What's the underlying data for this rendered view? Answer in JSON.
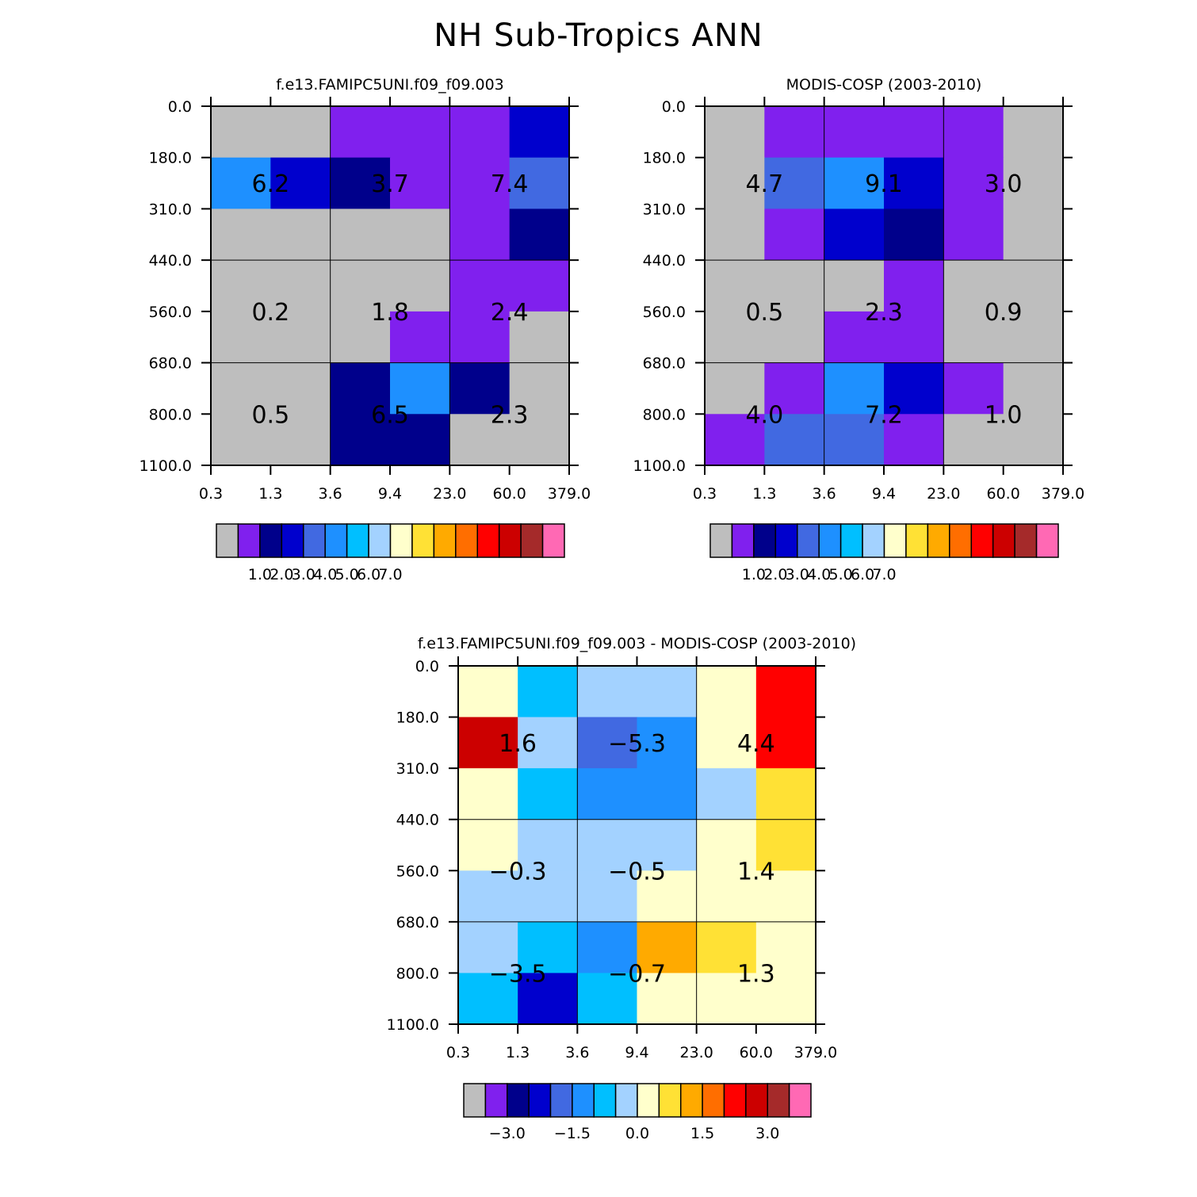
{
  "figure_title": "NH Sub-Tropics ANN",
  "chart_data": [
    {
      "type": "heatmap",
      "title": "f.e13.FAMIPC5UNI.f09_f09.003",
      "x_ticks": [
        "0.3",
        "1.3",
        "3.6",
        "9.4",
        "23.0",
        "60.0",
        "379.0"
      ],
      "y_ticks": [
        "0.0",
        "180.0",
        "310.0",
        "440.0",
        "560.0",
        "680.0",
        "800.0",
        "1100.0"
      ],
      "grid": true,
      "cells": [
        [
          0,
          0,
          1,
          1,
          1,
          3
        ],
        [
          5,
          3,
          2,
          1,
          1,
          4
        ],
        [
          0,
          0,
          0,
          0,
          1,
          2
        ],
        [
          0,
          0,
          0,
          0,
          1,
          1
        ],
        [
          0,
          0,
          0,
          1,
          1,
          0
        ],
        [
          0,
          0,
          2,
          5,
          2,
          0
        ],
        [
          0,
          0,
          2,
          2,
          0,
          0
        ]
      ],
      "block_labels": [
        [
          "6.2",
          "3.7",
          "7.4"
        ],
        [
          "0.2",
          "1.8",
          "2.4"
        ],
        [
          "0.5",
          "6.5",
          "2.3"
        ]
      ],
      "colorbar_labels": [
        "1.0",
        "2.0",
        "3.0",
        "4.0",
        "5.0",
        "6.0",
        "7.0"
      ]
    },
    {
      "type": "heatmap",
      "title": "MODIS-COSP (2003-2010)",
      "x_ticks": [
        "0.3",
        "1.3",
        "3.6",
        "9.4",
        "23.0",
        "60.0",
        "379.0"
      ],
      "y_ticks": [
        "0.0",
        "180.0",
        "310.0",
        "440.0",
        "560.0",
        "680.0",
        "800.0",
        "1100.0"
      ],
      "grid": true,
      "cells": [
        [
          0,
          1,
          1,
          1,
          1,
          0
        ],
        [
          0,
          4,
          5,
          3,
          1,
          0
        ],
        [
          0,
          1,
          3,
          2,
          1,
          0
        ],
        [
          0,
          0,
          0,
          1,
          0,
          0
        ],
        [
          0,
          0,
          1,
          1,
          0,
          0
        ],
        [
          0,
          1,
          5,
          3,
          1,
          0
        ],
        [
          1,
          4,
          4,
          1,
          0,
          0
        ]
      ],
      "block_labels": [
        [
          "4.7",
          "9.1",
          "3.0"
        ],
        [
          "0.5",
          "2.3",
          "0.9"
        ],
        [
          "4.0",
          "7.2",
          "1.0"
        ]
      ],
      "colorbar_labels": [
        "1.0",
        "2.0",
        "3.0",
        "4.0",
        "5.0",
        "6.0",
        "7.0"
      ]
    },
    {
      "type": "heatmap",
      "title": "f.e13.FAMIPC5UNI.f09_f09.003 - MODIS-COSP (2003-2010)",
      "x_ticks": [
        "0.3",
        "1.3",
        "3.6",
        "9.4",
        "23.0",
        "60.0",
        "379.0"
      ],
      "y_ticks": [
        "0.0",
        "180.0",
        "310.0",
        "440.0",
        "560.0",
        "680.0",
        "800.0",
        "1100.0"
      ],
      "grid": true,
      "cells": [
        [
          8,
          6,
          7,
          7,
          8,
          12
        ],
        [
          13,
          7,
          4,
          5,
          8,
          12
        ],
        [
          8,
          6,
          5,
          5,
          7,
          9
        ],
        [
          8,
          7,
          7,
          7,
          8,
          9
        ],
        [
          7,
          7,
          7,
          8,
          8,
          8
        ],
        [
          7,
          6,
          5,
          10,
          9,
          8
        ],
        [
          6,
          3,
          6,
          8,
          8,
          8
        ]
      ],
      "block_labels": [
        [
          "1.6",
          "-5.3",
          "4.4"
        ],
        [
          "-0.3",
          "-0.5",
          "1.4"
        ],
        [
          "-3.5",
          "-0.7",
          "1.3"
        ]
      ],
      "colorbar_labels": [
        "-3.0",
        "-1.5",
        "0.0",
        "1.5",
        "3.0"
      ]
    }
  ],
  "palette": [
    "#bebebe",
    "#8020ee",
    "#00008b",
    "#0000cd",
    "#4169e1",
    "#1e90ff",
    "#00bfff",
    "#a3d2ff",
    "#ffffcc",
    "#ffe135",
    "#ffaa00",
    "#ff6e00",
    "#ff0000",
    "#cc0000",
    "#a52a2a",
    "#ff69b4"
  ]
}
